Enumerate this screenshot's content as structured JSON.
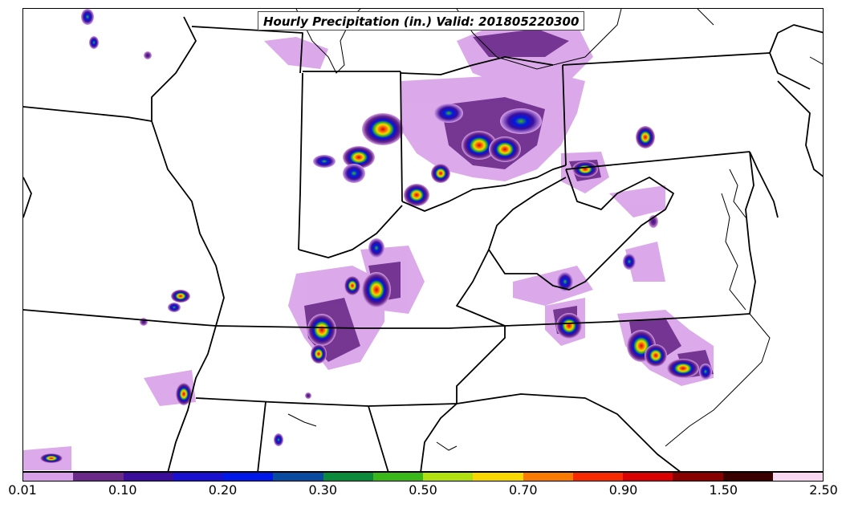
{
  "map": {
    "title": "Hourly Precipitation (in.) Valid: 201805220300"
  },
  "colorbar": {
    "bins": [
      0.01,
      0.05,
      0.1,
      0.15,
      0.2,
      0.25,
      0.3,
      0.4,
      0.5,
      0.6,
      0.7,
      0.8,
      0.9,
      1.0,
      1.5,
      2.0,
      2.5
    ],
    "colors": [
      "#d8a0e8",
      "#6a2a8a",
      "#3a0e9a",
      "#1a10d0",
      "#0018e8",
      "#0a4aa0",
      "#0a8a3a",
      "#3ab81a",
      "#b0e010",
      "#f8d800",
      "#f87a00",
      "#f82a00",
      "#d80000",
      "#880000",
      "#3a0000",
      "#f8d8f0"
    ],
    "tick_labels": [
      "0.01",
      "0.10",
      "0.20",
      "0.30",
      "0.50",
      "0.70",
      "0.90",
      "1.50",
      "2.50"
    ]
  }
}
